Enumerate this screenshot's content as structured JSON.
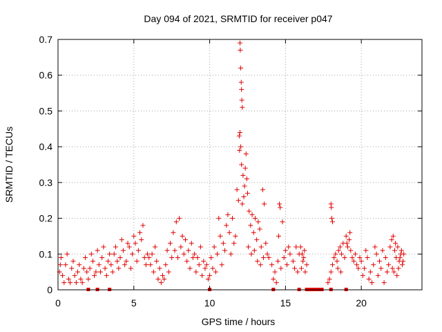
{
  "chart_data": {
    "type": "scatter",
    "title": "Day 094 of 2021, SRMTID for receiver p047",
    "xlabel": "GPS time / hours",
    "ylabel": "SRMTID / TECUs",
    "xlim": [
      0,
      24
    ],
    "ylim": [
      0,
      0.7
    ],
    "x_ticks": [
      0,
      5,
      10,
      15,
      20
    ],
    "x_tick_labels": [
      "0",
      "5",
      "10",
      "15",
      "20"
    ],
    "y_ticks": [
      0,
      0.1,
      0.2,
      0.3,
      0.4,
      0.5,
      0.6,
      0.7
    ],
    "y_tick_labels": [
      "0",
      "0.1",
      "0.2",
      "0.3",
      "0.4",
      "0.5",
      "0.6",
      "0.7"
    ],
    "grid": true,
    "marker": "plus",
    "color": "#e00000",
    "series": [
      {
        "name": "SRMTID",
        "points": [
          [
            0.1,
            0.05
          ],
          [
            0.3,
            0.04
          ],
          [
            0.5,
            0.07
          ],
          [
            0.7,
            0.03
          ],
          [
            0.9,
            0.06
          ],
          [
            1.1,
            0.04
          ],
          [
            1.3,
            0.05
          ],
          [
            1.5,
            0.03
          ],
          [
            1.7,
            0.06
          ],
          [
            1.9,
            0.05
          ],
          [
            0.2,
            0.09
          ],
          [
            0.6,
            0.1
          ],
          [
            1.0,
            0.08
          ],
          [
            1.4,
            0.07
          ],
          [
            1.8,
            0.09
          ],
          [
            0.4,
            0.02
          ],
          [
            0.8,
            0.02
          ],
          [
            1.2,
            0.02
          ],
          [
            1.6,
            0.02
          ],
          [
            0.15,
            0.07
          ],
          [
            2.1,
            0.06
          ],
          [
            2.3,
            0.08
          ],
          [
            2.5,
            0.05
          ],
          [
            2.7,
            0.07
          ],
          [
            2.9,
            0.09
          ],
          [
            3.1,
            0.06
          ],
          [
            3.3,
            0.08
          ],
          [
            3.5,
            0.07
          ],
          [
            3.7,
            0.1
          ],
          [
            3.9,
            0.08
          ],
          [
            2.2,
            0.1
          ],
          [
            2.6,
            0.11
          ],
          [
            3.0,
            0.12
          ],
          [
            3.4,
            0.1
          ],
          [
            3.8,
            0.12
          ],
          [
            2.4,
            0.04
          ],
          [
            2.8,
            0.05
          ],
          [
            3.2,
            0.04
          ],
          [
            3.6,
            0.05
          ],
          [
            2.0,
            0.03
          ],
          [
            4.1,
            0.09
          ],
          [
            4.3,
            0.11
          ],
          [
            4.5,
            0.08
          ],
          [
            4.7,
            0.12
          ],
          [
            4.9,
            0.1
          ],
          [
            5.1,
            0.13
          ],
          [
            5.3,
            0.11
          ],
          [
            5.5,
            0.14
          ],
          [
            5.7,
            0.09
          ],
          [
            5.9,
            0.1
          ],
          [
            4.2,
            0.14
          ],
          [
            4.6,
            0.13
          ],
          [
            5.0,
            0.15
          ],
          [
            5.4,
            0.16
          ],
          [
            5.6,
            0.18
          ],
          [
            4.4,
            0.07
          ],
          [
            4.8,
            0.06
          ],
          [
            5.2,
            0.08
          ],
          [
            5.8,
            0.07
          ],
          [
            4.0,
            0.06
          ],
          [
            6.1,
            0.07
          ],
          [
            6.3,
            0.05
          ],
          [
            6.5,
            0.08
          ],
          [
            6.7,
            0.06
          ],
          [
            6.9,
            0.04
          ],
          [
            7.1,
            0.07
          ],
          [
            7.3,
            0.05
          ],
          [
            7.5,
            0.09
          ],
          [
            7.7,
            0.11
          ],
          [
            7.9,
            0.09
          ],
          [
            6.2,
            0.1
          ],
          [
            6.6,
            0.03
          ],
          [
            7.0,
            0.03
          ],
          [
            7.4,
            0.13
          ],
          [
            7.6,
            0.16
          ],
          [
            7.8,
            0.19
          ],
          [
            6.4,
            0.12
          ],
          [
            6.8,
            0.02
          ],
          [
            7.2,
            0.11
          ],
          [
            6.0,
            0.09
          ],
          [
            8.1,
            0.12
          ],
          [
            8.3,
            0.1
          ],
          [
            8.5,
            0.08
          ],
          [
            8.7,
            0.06
          ],
          [
            8.9,
            0.09
          ],
          [
            9.1,
            0.05
          ],
          [
            9.3,
            0.07
          ],
          [
            9.5,
            0.04
          ],
          [
            9.7,
            0.06
          ],
          [
            9.9,
            0.03
          ],
          [
            8.0,
            0.2
          ],
          [
            8.2,
            0.15
          ],
          [
            8.4,
            0.14
          ],
          [
            8.6,
            0.11
          ],
          [
            8.8,
            0.13
          ],
          [
            9.0,
            0.1
          ],
          [
            9.2,
            0.09
          ],
          [
            9.4,
            0.12
          ],
          [
            9.6,
            0.08
          ],
          [
            9.8,
            0.07
          ],
          [
            10.1,
            0.09
          ],
          [
            10.3,
            0.12
          ],
          [
            10.5,
            0.1
          ],
          [
            10.7,
            0.15
          ],
          [
            10.9,
            0.13
          ],
          [
            11.1,
            0.18
          ],
          [
            11.3,
            0.16
          ],
          [
            11.5,
            0.2
          ],
          [
            11.7,
            0.15
          ],
          [
            11.9,
            0.25
          ],
          [
            10.2,
            0.06
          ],
          [
            10.4,
            0.05
          ],
          [
            10.6,
            0.2
          ],
          [
            10.8,
            0.07
          ],
          [
            11.0,
            0.11
          ],
          [
            11.2,
            0.21
          ],
          [
            11.4,
            0.1
          ],
          [
            11.6,
            0.13
          ],
          [
            11.8,
            0.28
          ],
          [
            10.0,
            0.04
          ],
          [
            12.0,
            0.69
          ],
          [
            12.02,
            0.67
          ],
          [
            12.05,
            0.62
          ],
          [
            12.08,
            0.58
          ],
          [
            12.1,
            0.56
          ],
          [
            12.12,
            0.53
          ],
          [
            12.15,
            0.51
          ],
          [
            12.0,
            0.44
          ],
          [
            11.95,
            0.43
          ],
          [
            12.05,
            0.4
          ],
          [
            11.97,
            0.39
          ],
          [
            12.1,
            0.35
          ],
          [
            12.2,
            0.32
          ],
          [
            12.3,
            0.29
          ],
          [
            12.4,
            0.38
          ],
          [
            12.35,
            0.34
          ],
          [
            12.45,
            0.31
          ],
          [
            12.5,
            0.27
          ],
          [
            12.25,
            0.26
          ],
          [
            12.15,
            0.24
          ],
          [
            12.6,
            0.22
          ],
          [
            12.7,
            0.18
          ],
          [
            12.8,
            0.21
          ],
          [
            12.9,
            0.16
          ],
          [
            13.0,
            0.2
          ],
          [
            13.1,
            0.14
          ],
          [
            13.2,
            0.19
          ],
          [
            13.3,
            0.17
          ],
          [
            13.4,
            0.12
          ],
          [
            13.5,
            0.28
          ],
          [
            13.6,
            0.24
          ],
          [
            13.7,
            0.13
          ],
          [
            13.8,
            0.1
          ],
          [
            13.9,
            0.09
          ],
          [
            12.55,
            0.12
          ],
          [
            12.75,
            0.1
          ],
          [
            12.95,
            0.11
          ],
          [
            13.15,
            0.08
          ],
          [
            13.35,
            0.07
          ],
          [
            13.55,
            0.09
          ],
          [
            14.1,
            0.07
          ],
          [
            14.3,
            0.05
          ],
          [
            14.5,
            0.08
          ],
          [
            14.7,
            0.06
          ],
          [
            14.9,
            0.09
          ],
          [
            15.1,
            0.07
          ],
          [
            15.3,
            0.1
          ],
          [
            15.5,
            0.08
          ],
          [
            15.7,
            0.12
          ],
          [
            15.9,
            0.1
          ],
          [
            14.2,
            0.03
          ],
          [
            14.4,
            0.02
          ],
          [
            14.6,
            0.24
          ],
          [
            14.65,
            0.23
          ],
          [
            14.8,
            0.19
          ],
          [
            14.55,
            0.15
          ],
          [
            15.0,
            0.11
          ],
          [
            15.2,
            0.12
          ],
          [
            15.6,
            0.06
          ],
          [
            15.8,
            0.05
          ],
          [
            16.0,
            0.12
          ],
          [
            16.2,
            0.09
          ],
          [
            16.4,
            0.07
          ],
          [
            16.1,
            0.1
          ],
          [
            16.3,
            0.05
          ],
          [
            16.15,
            0.08
          ],
          [
            16.25,
            0.11
          ],
          [
            16.05,
            0.06
          ],
          [
            17.8,
            0.02
          ],
          [
            17.9,
            0.03
          ],
          [
            18.0,
            0.05
          ],
          [
            18.1,
            0.07
          ],
          [
            18.2,
            0.09
          ],
          [
            18.3,
            0.1
          ],
          [
            18.4,
            0.08
          ],
          [
            18.5,
            0.11
          ],
          [
            18.6,
            0.12
          ],
          [
            18.7,
            0.1
          ],
          [
            18.0,
            0.24
          ],
          [
            18.02,
            0.23
          ],
          [
            18.05,
            0.2
          ],
          [
            18.1,
            0.19
          ],
          [
            18.8,
            0.13
          ],
          [
            18.9,
            0.09
          ],
          [
            19.0,
            0.15
          ],
          [
            19.1,
            0.12
          ],
          [
            19.2,
            0.14
          ],
          [
            19.3,
            0.11
          ],
          [
            19.4,
            0.09
          ],
          [
            19.5,
            0.08
          ],
          [
            19.6,
            0.1
          ],
          [
            19.7,
            0.07
          ],
          [
            19.8,
            0.06
          ],
          [
            19.9,
            0.09
          ],
          [
            18.45,
            0.06
          ],
          [
            18.65,
            0.05
          ],
          [
            19.05,
            0.13
          ],
          [
            19.25,
            0.16
          ],
          [
            20.0,
            0.08
          ],
          [
            20.2,
            0.06
          ],
          [
            20.4,
            0.09
          ],
          [
            20.6,
            0.05
          ],
          [
            20.8,
            0.07
          ],
          [
            21.0,
            0.1
          ],
          [
            21.2,
            0.08
          ],
          [
            21.4,
            0.11
          ],
          [
            21.6,
            0.09
          ],
          [
            21.8,
            0.07
          ],
          [
            20.1,
            0.04
          ],
          [
            20.3,
            0.11
          ],
          [
            20.5,
            0.03
          ],
          [
            20.7,
            0.02
          ],
          [
            20.9,
            0.12
          ],
          [
            21.1,
            0.04
          ],
          [
            21.3,
            0.06
          ],
          [
            21.5,
            0.02
          ],
          [
            21.7,
            0.05
          ],
          [
            21.9,
            0.12
          ],
          [
            22.0,
            0.14
          ],
          [
            22.1,
            0.15
          ],
          [
            22.2,
            0.11
          ],
          [
            22.3,
            0.09
          ],
          [
            22.4,
            0.12
          ],
          [
            22.5,
            0.08
          ],
          [
            22.6,
            0.1
          ],
          [
            22.7,
            0.07
          ],
          [
            22.05,
            0.06
          ],
          [
            22.15,
            0.05
          ],
          [
            22.25,
            0.13
          ],
          [
            22.35,
            0.04
          ],
          [
            22.45,
            0.06
          ],
          [
            22.55,
            0.09
          ],
          [
            22.65,
            0.11
          ],
          [
            22.75,
            0.08
          ],
          [
            22.8,
            0.1
          ]
        ]
      }
    ],
    "gap_markers_x": [
      2.0,
      2.6,
      3.4,
      10.0,
      14.2,
      15.9,
      16.4,
      16.6,
      16.8,
      17.0,
      17.2,
      17.4,
      18.0,
      19.0
    ]
  }
}
